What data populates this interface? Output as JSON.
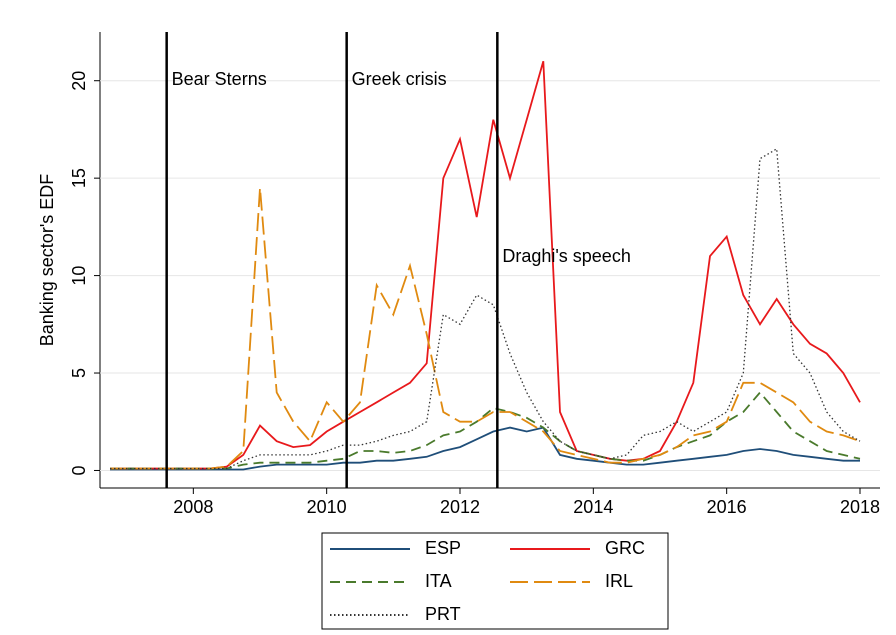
{
  "chart_data": {
    "type": "line",
    "y_label": "Banking sector's EDF",
    "x": [
      2006.75,
      2007.0,
      2007.25,
      2007.5,
      2007.75,
      2008.0,
      2008.25,
      2008.5,
      2008.75,
      2009.0,
      2009.25,
      2009.5,
      2009.75,
      2010.0,
      2010.25,
      2010.5,
      2010.75,
      2011.0,
      2011.25,
      2011.5,
      2011.75,
      2012.0,
      2012.25,
      2012.5,
      2012.75,
      2013.0,
      2013.25,
      2013.5,
      2013.75,
      2014.0,
      2014.25,
      2014.5,
      2014.75,
      2015.0,
      2015.25,
      2015.5,
      2015.75,
      2016.0,
      2016.25,
      2016.5,
      2016.75,
      2017.0,
      2017.25,
      2017.5,
      2017.75,
      2018.0
    ],
    "series": [
      {
        "name": "ESP",
        "color": "#1f4e79",
        "style": "solid",
        "values": [
          0.05,
          0.05,
          0.05,
          0.05,
          0.05,
          0.05,
          0.05,
          0.05,
          0.05,
          0.2,
          0.3,
          0.3,
          0.3,
          0.3,
          0.4,
          0.4,
          0.5,
          0.5,
          0.6,
          0.7,
          1.0,
          1.2,
          1.6,
          2.0,
          2.2,
          2.0,
          2.2,
          0.8,
          0.6,
          0.5,
          0.4,
          0.3,
          0.3,
          0.4,
          0.5,
          0.6,
          0.7,
          0.8,
          1.0,
          1.1,
          1.0,
          0.8,
          0.7,
          0.6,
          0.5,
          0.5
        ]
      },
      {
        "name": "GRC",
        "color": "#e8191c",
        "style": "solid",
        "values": [
          0.1,
          0.1,
          0.1,
          0.1,
          0.1,
          0.1,
          0.1,
          0.2,
          0.8,
          2.3,
          1.5,
          1.2,
          1.3,
          2.0,
          2.5,
          3.0,
          3.5,
          4.0,
          4.5,
          5.5,
          15,
          17,
          13,
          18,
          15,
          18,
          21,
          3,
          1.0,
          0.8,
          0.6,
          0.5,
          0.6,
          1.0,
          2.5,
          4.5,
          11,
          12,
          9,
          7.5,
          8.8,
          7.5,
          6.5,
          6,
          5,
          3.5
        ]
      },
      {
        "name": "ITA",
        "color": "#4a7a2c",
        "style": "dashed",
        "values": [
          0.1,
          0.1,
          0.1,
          0.1,
          0.1,
          0.1,
          0.1,
          0.1,
          0.3,
          0.4,
          0.4,
          0.4,
          0.4,
          0.5,
          0.6,
          1.0,
          1.0,
          0.9,
          1.0,
          1.3,
          1.8,
          2.0,
          2.5,
          3.2,
          3.0,
          2.7,
          2.2,
          1.5,
          1.0,
          0.8,
          0.6,
          0.5,
          0.5,
          0.8,
          1.2,
          1.5,
          1.8,
          2.5,
          3.0,
          4.0,
          3.0,
          2.0,
          1.5,
          1.0,
          0.8,
          0.6
        ]
      },
      {
        "name": "IRL",
        "color": "#e08a10",
        "style": "longdash",
        "values": [
          0.1,
          0.1,
          0.1,
          0.1,
          0.1,
          0.1,
          0.1,
          0.2,
          1.0,
          14.5,
          4,
          2.5,
          1.5,
          3.5,
          2.5,
          3.5,
          9.5,
          8,
          10.5,
          7,
          3,
          2.5,
          2.5,
          3,
          3,
          2.5,
          2.0,
          1.0,
          0.8,
          0.6,
          0.4,
          0.4,
          0.6,
          0.8,
          1.2,
          1.8,
          2.0,
          2.5,
          4.5,
          4.5,
          4.0,
          3.5,
          2.5,
          2.0,
          1.8,
          1.5
        ]
      },
      {
        "name": "PRT",
        "color": "#333333",
        "style": "dotted",
        "values": [
          0.1,
          0.1,
          0.1,
          0.1,
          0.1,
          0.1,
          0.1,
          0.1,
          0.5,
          0.8,
          0.8,
          0.8,
          0.8,
          1.0,
          1.3,
          1.3,
          1.5,
          1.8,
          2.0,
          2.5,
          8.0,
          7.5,
          9.0,
          8.5,
          6.0,
          4.0,
          2.5,
          1.5,
          1.0,
          0.8,
          0.6,
          0.8,
          1.8,
          2.0,
          2.5,
          2.0,
          2.5,
          3.0,
          5.0,
          16,
          16.5,
          6,
          5,
          3,
          2,
          1.5
        ]
      }
    ],
    "annotations": [
      {
        "x": 2007.6,
        "label": "Bear Sterns"
      },
      {
        "x": 2010.3,
        "label": "Greek crisis"
      },
      {
        "x": 2012.56,
        "label": "Draghi's speech"
      }
    ],
    "xlim": [
      2006.6,
      2018.3
    ],
    "xticks": [
      2008,
      2010,
      2012,
      2014,
      2016,
      2018
    ],
    "ylim": [
      -0.9,
      22.5
    ],
    "yticks": [
      0,
      5,
      10,
      15,
      20
    ],
    "grid": true,
    "legend": "bottom"
  }
}
